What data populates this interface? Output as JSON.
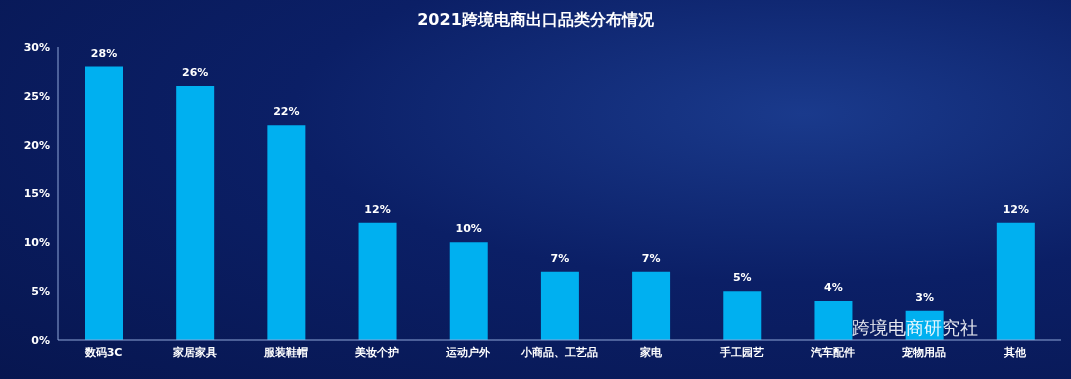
{
  "chart_data": {
    "type": "bar",
    "title": "2021跨境电商出口品类分布情况",
    "categories": [
      "数码3C",
      "家居家具",
      "服装鞋帽",
      "美妆个护",
      "运动户外",
      "小商品、工艺品",
      "家电",
      "手工园艺",
      "汽车配件",
      "宠物用品",
      "其他"
    ],
    "values": [
      28,
      26,
      22,
      12,
      10,
      7,
      7,
      5,
      4,
      3,
      12
    ],
    "value_labels": [
      "28%",
      "26%",
      "22%",
      "12%",
      "10%",
      "7%",
      "7%",
      "5%",
      "4%",
      "3%",
      "12%"
    ],
    "color": "#00b0f0",
    "ylim": [
      0,
      30
    ],
    "yticks": [
      {
        "value": 0,
        "label": "0%"
      },
      {
        "value": 5,
        "label": "5%"
      },
      {
        "value": 10,
        "label": "10%"
      },
      {
        "value": 15,
        "label": "15%"
      },
      {
        "value": 20,
        "label": "20%"
      },
      {
        "value": 25,
        "label": "25%"
      },
      {
        "value": 30,
        "label": "30%"
      }
    ],
    "grid": false,
    "data_labels": true,
    "annotation": "跨境电商研究社"
  }
}
